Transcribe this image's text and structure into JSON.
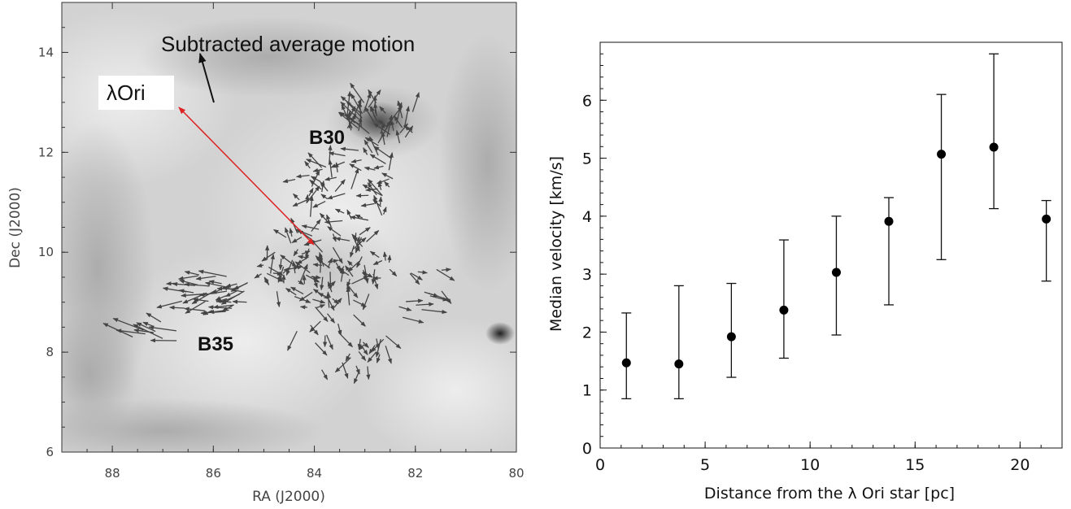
{
  "chart_data": [
    {
      "type": "scatter",
      "description_note": "",
      "xlabel": "RA (J2000)",
      "ylabel": "Dec (J2000)",
      "xlim": [
        89,
        80
      ],
      "ylim": [
        6,
        15
      ],
      "x_ticks": [
        "88",
        "86",
        "84",
        "82",
        "80"
      ],
      "y_ticks": [
        "6",
        "8",
        "10",
        "12",
        "14"
      ],
      "colormap": "grayscale",
      "annotations": {
        "subtracted_motion": "Subtracted average motion",
        "star_label": "λOri",
        "region_north": "B30",
        "region_south": "B35"
      },
      "colors": {
        "arrow": "#444444",
        "distance_arrow": "#dd2222"
      }
    },
    {
      "type": "scatter",
      "xlabel": "Distance from the λ Ori star [pc]",
      "ylabel": "Median velocity [km/s]",
      "xlim": [
        0,
        22
      ],
      "ylim": [
        0,
        7
      ],
      "x_ticks": [
        "0",
        "5",
        "10",
        "15",
        "20"
      ],
      "y_ticks": [
        "0",
        "1",
        "2",
        "3",
        "4",
        "5",
        "6"
      ],
      "points": [
        {
          "x": 1.25,
          "y": 1.47,
          "err_low": 0.85,
          "err_high": 2.33
        },
        {
          "x": 3.75,
          "y": 1.45,
          "err_low": 0.85,
          "err_high": 2.8
        },
        {
          "x": 6.25,
          "y": 1.92,
          "err_low": 1.22,
          "err_high": 2.84
        },
        {
          "x": 8.75,
          "y": 2.38,
          "err_low": 1.55,
          "err_high": 3.59
        },
        {
          "x": 11.25,
          "y": 3.03,
          "err_low": 1.95,
          "err_high": 4.0
        },
        {
          "x": 13.75,
          "y": 3.91,
          "err_low": 2.47,
          "err_high": 4.32
        },
        {
          "x": 16.25,
          "y": 5.07,
          "err_low": 3.25,
          "err_high": 6.1
        },
        {
          "x": 18.75,
          "y": 5.19,
          "err_low": 4.13,
          "err_high": 6.8
        },
        {
          "x": 21.25,
          "y": 3.95,
          "err_low": 2.88,
          "err_high": 4.27
        }
      ],
      "grid": false
    }
  ]
}
